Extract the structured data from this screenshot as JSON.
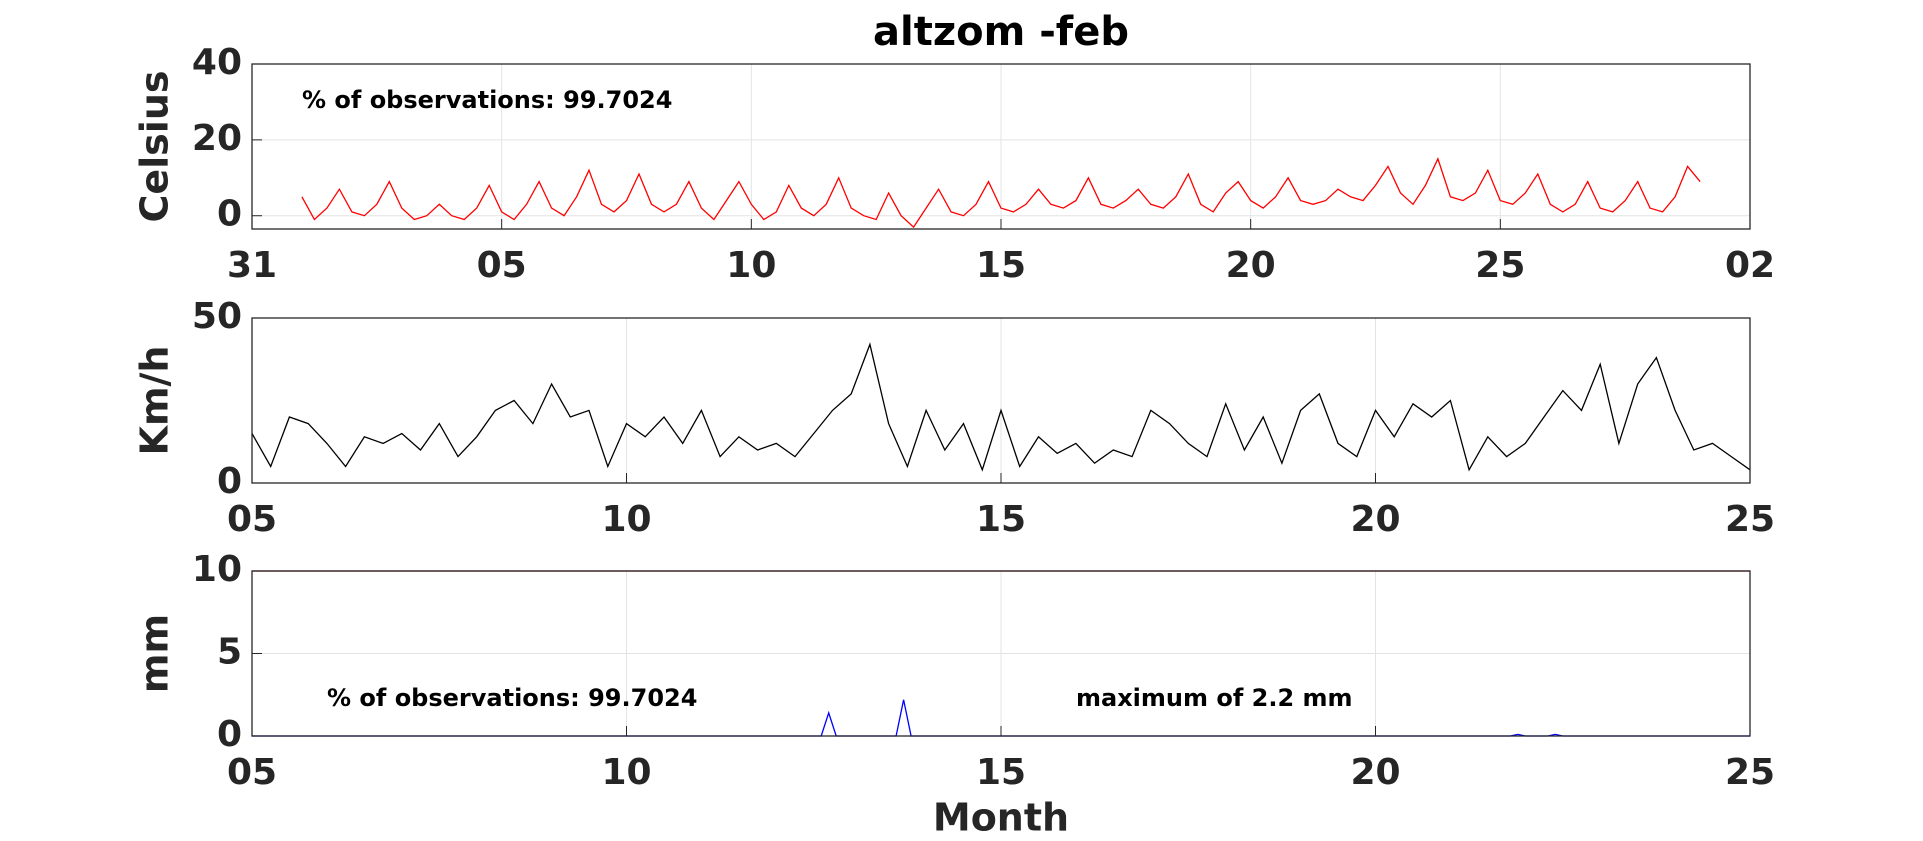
{
  "chart_data": [
    {
      "type": "line",
      "title": "altzom -feb",
      "y_label": "Celsius",
      "annotations": [
        "% of observations: 99.7024"
      ],
      "grid": true,
      "xlim": [
        0,
        30
      ],
      "xticks": [
        {
          "value": 0,
          "label": "31"
        },
        {
          "value": 5,
          "label": "05"
        },
        10,
        15,
        20,
        25,
        {
          "value": 30,
          "label": "02"
        }
      ],
      "ylim": [
        -3.5,
        40
      ],
      "yticks": [
        0,
        20,
        40
      ],
      "series": [
        {
          "color": "#ff0000",
          "x": [
            1,
            1.25,
            1.5,
            1.75,
            2,
            2.25,
            2.5,
            2.75,
            3,
            3.25,
            3.5,
            3.75,
            4,
            4.25,
            4.5,
            4.75,
            5,
            5.25,
            5.5,
            5.75,
            6,
            6.25,
            6.5,
            6.75,
            7,
            7.25,
            7.5,
            7.75,
            8,
            8.25,
            8.5,
            8.75,
            9,
            9.25,
            9.5,
            9.75,
            10,
            10.25,
            10.5,
            10.75,
            11,
            11.25,
            11.5,
            11.75,
            12,
            12.25,
            12.5,
            12.75,
            13,
            13.25,
            13.5,
            13.75,
            14,
            14.25,
            14.5,
            14.75,
            15,
            15.25,
            15.5,
            15.75,
            16,
            16.25,
            16.5,
            16.75,
            17,
            17.25,
            17.5,
            17.75,
            18,
            18.25,
            18.5,
            18.75,
            19,
            19.25,
            19.5,
            19.75,
            20,
            20.25,
            20.5,
            20.75,
            21,
            21.25,
            21.5,
            21.75,
            22,
            22.25,
            22.5,
            22.75,
            23,
            23.25,
            23.5,
            23.75,
            24,
            24.25,
            24.5,
            24.75,
            25,
            25.25,
            25.5,
            25.75,
            26,
            26.25,
            26.5,
            26.75,
            27,
            27.25,
            27.5,
            27.75,
            28,
            28.25,
            28.5,
            28.75,
            29
          ],
          "values": [
            5,
            -1,
            2,
            7,
            1,
            0,
            3,
            9,
            2,
            -1,
            0,
            3,
            0,
            -1,
            2,
            8,
            1,
            -1,
            3,
            9,
            2,
            0,
            5,
            12,
            3,
            1,
            4,
            11,
            3,
            1,
            3,
            9,
            2,
            -1,
            4,
            9,
            3,
            -1,
            1,
            8,
            2,
            0,
            3,
            10,
            2,
            0,
            -1,
            6,
            0,
            -3,
            2,
            7,
            1,
            0,
            3,
            9,
            2,
            1,
            3,
            7,
            3,
            2,
            4,
            10,
            3,
            2,
            4,
            7,
            3,
            2,
            5,
            11,
            3,
            1,
            6,
            9,
            4,
            2,
            5,
            10,
            4,
            3,
            4,
            7,
            5,
            4,
            8,
            13,
            6,
            3,
            8,
            15,
            5,
            4,
            6,
            12,
            4,
            3,
            6,
            11,
            3,
            1,
            3,
            9,
            2,
            1,
            4,
            9,
            2,
            1,
            5,
            13,
            9
          ]
        }
      ]
    },
    {
      "type": "line",
      "y_label": "Km/h",
      "grid": true,
      "xlim": [
        5,
        25
      ],
      "xticks": [
        {
          "value": 5,
          "label": "05"
        },
        10,
        15,
        20,
        25
      ],
      "ylim": [
        0,
        50
      ],
      "yticks": [
        0,
        50
      ],
      "series": [
        {
          "color": "#000000",
          "x": [
            5,
            5.25,
            5.5,
            5.75,
            6,
            6.25,
            6.5,
            6.75,
            7,
            7.25,
            7.5,
            7.75,
            8,
            8.25,
            8.5,
            8.75,
            9,
            9.25,
            9.5,
            9.75,
            10,
            10.25,
            10.5,
            10.75,
            11,
            11.25,
            11.5,
            11.75,
            12,
            12.25,
            12.5,
            12.75,
            13,
            13.25,
            13.5,
            13.75,
            14,
            14.25,
            14.5,
            14.75,
            15,
            15.25,
            15.5,
            15.75,
            16,
            16.25,
            16.5,
            16.75,
            17,
            17.25,
            17.5,
            17.75,
            18,
            18.25,
            18.5,
            18.75,
            19,
            19.25,
            19.5,
            19.75,
            20,
            20.25,
            20.5,
            20.75,
            21,
            21.25,
            21.5,
            21.75,
            22,
            22.25,
            22.5,
            22.75,
            23,
            23.25,
            23.5,
            23.75,
            24,
            24.25,
            24.5,
            24.75,
            25
          ],
          "values": [
            15,
            5,
            20,
            18,
            12,
            5,
            14,
            12,
            15,
            10,
            18,
            8,
            14,
            22,
            25,
            18,
            30,
            20,
            22,
            5,
            18,
            14,
            20,
            12,
            22,
            8,
            14,
            10,
            12,
            8,
            15,
            22,
            27,
            42,
            18,
            5,
            22,
            10,
            18,
            4,
            22,
            5,
            14,
            9,
            12,
            6,
            10,
            8,
            22,
            18,
            12,
            8,
            24,
            10,
            20,
            6,
            22,
            27,
            12,
            8,
            22,
            14,
            24,
            20,
            25,
            4,
            14,
            8,
            12,
            20,
            28,
            22,
            36,
            12,
            30,
            38,
            22,
            10,
            12,
            8,
            4
          ]
        }
      ]
    },
    {
      "type": "line",
      "y_label": "mm",
      "x_label": "Month",
      "annotations": [
        "% of observations: 99.7024",
        "maximum of 2.2 mm"
      ],
      "grid": true,
      "xlim": [
        5,
        25
      ],
      "xticks": [
        {
          "value": 5,
          "label": "05"
        },
        10,
        15,
        20,
        25
      ],
      "ylim": [
        0,
        10
      ],
      "yticks": [
        0,
        5,
        10
      ],
      "series": [
        {
          "color": "#cc0000",
          "x": [
            5,
            25
          ],
          "values": [
            10,
            10
          ]
        },
        {
          "color": "#0000ff",
          "x": [
            5,
            12.6,
            12.7,
            12.8,
            13.6,
            13.7,
            13.8,
            21.8,
            21.9,
            22,
            22.3,
            22.4,
            22.5,
            25
          ],
          "values": [
            0,
            0,
            1.4,
            0,
            0,
            2.2,
            0,
            0,
            0.1,
            0,
            0,
            0.1,
            0,
            0
          ]
        }
      ]
    }
  ]
}
